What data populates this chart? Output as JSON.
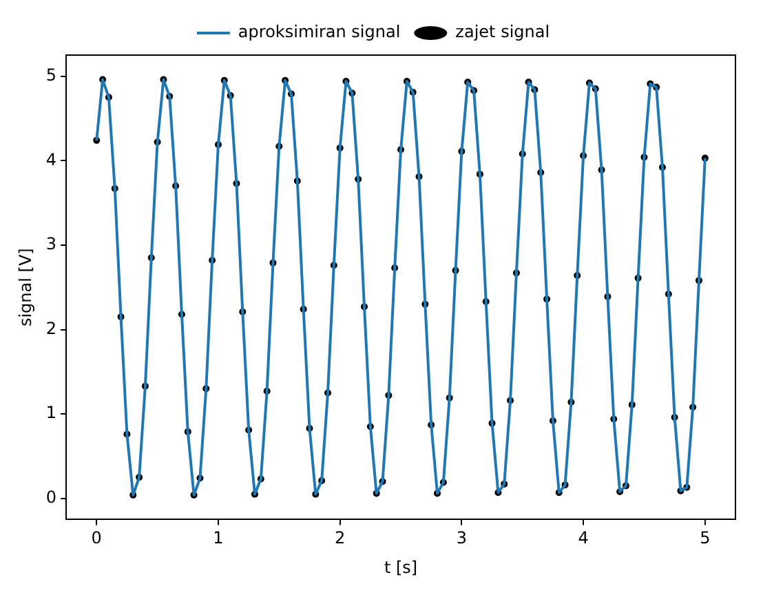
{
  "chart_data": {
    "type": "line",
    "xlabel": "t [s]",
    "ylabel": "signal [V]",
    "xlim": [
      -0.25,
      5.25
    ],
    "xticks": [
      0,
      1,
      2,
      3,
      4,
      5
    ],
    "ylim": [
      -0.25,
      5.25
    ],
    "yticks": [
      0,
      1,
      2,
      3,
      4,
      5
    ],
    "grid": false,
    "legend": "top",
    "x": [
      0,
      0.05,
      0.1,
      0.15,
      0.2,
      0.25,
      0.3,
      0.35,
      0.4,
      0.45,
      0.5,
      0.55,
      0.6,
      0.65,
      0.7,
      0.75,
      0.8,
      0.85,
      0.9,
      0.95,
      1,
      1.05,
      1.1,
      1.15,
      1.2,
      1.25,
      1.3,
      1.35,
      1.4,
      1.45,
      1.5,
      1.55,
      1.6,
      1.65,
      1.7,
      1.75,
      1.8,
      1.85,
      1.9,
      1.95,
      2,
      2.05,
      2.1,
      2.15,
      2.2,
      2.25,
      2.3,
      2.35,
      2.4,
      2.45,
      2.5,
      2.55,
      2.6,
      2.65,
      2.7,
      2.75,
      2.8,
      2.85,
      2.9,
      2.95,
      3,
      3.05,
      3.1,
      3.15,
      3.2,
      3.25,
      3.3,
      3.35,
      3.4,
      3.45,
      3.5,
      3.55,
      3.6,
      3.65,
      3.7,
      3.75,
      3.8,
      3.85,
      3.9,
      3.95,
      4,
      4.05,
      4.1,
      4.15,
      4.2,
      4.25,
      4.3,
      4.35,
      4.4,
      4.45,
      4.5,
      4.55,
      4.6,
      4.65,
      4.7,
      4.75,
      4.8,
      4.85,
      4.9,
      4.95,
      5
    ],
    "series": [
      {
        "name": "aproksimiran signal",
        "type": "line",
        "color": "#1f77b4",
        "marker": "none",
        "line_style": "solid",
        "values": [
          4.24,
          4.96,
          4.75,
          3.67,
          2.15,
          0.76,
          0.04,
          0.25,
          1.33,
          2.85,
          4.22,
          4.96,
          4.76,
          3.7,
          2.18,
          0.79,
          0.04,
          0.24,
          1.3,
          2.82,
          4.19,
          4.95,
          4.77,
          3.73,
          2.21,
          0.81,
          0.05,
          0.23,
          1.27,
          2.79,
          4.17,
          4.95,
          4.79,
          3.76,
          2.24,
          0.83,
          0.05,
          0.21,
          1.25,
          2.76,
          4.15,
          4.94,
          4.8,
          3.78,
          2.27,
          0.85,
          0.06,
          0.2,
          1.22,
          2.73,
          4.13,
          4.94,
          4.81,
          3.81,
          2.3,
          0.87,
          0.06,
          0.19,
          1.19,
          2.7,
          4.11,
          4.93,
          4.83,
          3.84,
          2.33,
          0.89,
          0.07,
          0.17,
          1.16,
          2.67,
          4.08,
          4.93,
          4.84,
          3.86,
          2.36,
          0.92,
          0.07,
          0.16,
          1.14,
          2.64,
          4.06,
          4.92,
          4.85,
          3.89,
          2.39,
          0.94,
          0.08,
          0.15,
          1.11,
          2.61,
          4.04,
          4.91,
          4.87,
          3.92,
          2.42,
          0.96,
          0.09,
          0.13,
          1.08,
          2.58,
          4.03
        ]
      },
      {
        "name": "zajet signal",
        "type": "scatter",
        "color": "#000000",
        "marker": "circle",
        "values": [
          4.24,
          4.96,
          4.75,
          3.67,
          2.15,
          0.76,
          0.04,
          0.25,
          1.33,
          2.85,
          4.22,
          4.96,
          4.76,
          3.7,
          2.18,
          0.79,
          0.04,
          0.24,
          1.3,
          2.82,
          4.19,
          4.95,
          4.77,
          3.73,
          2.21,
          0.81,
          0.05,
          0.23,
          1.27,
          2.79,
          4.17,
          4.95,
          4.79,
          3.76,
          2.24,
          0.83,
          0.05,
          0.21,
          1.25,
          2.76,
          4.15,
          4.94,
          4.8,
          3.78,
          2.27,
          0.85,
          0.06,
          0.2,
          1.22,
          2.73,
          4.13,
          4.94,
          4.81,
          3.81,
          2.3,
          0.87,
          0.06,
          0.19,
          1.19,
          2.7,
          4.11,
          4.93,
          4.83,
          3.84,
          2.33,
          0.89,
          0.07,
          0.17,
          1.16,
          2.67,
          4.08,
          4.93,
          4.84,
          3.86,
          2.36,
          0.92,
          0.07,
          0.16,
          1.14,
          2.64,
          4.06,
          4.92,
          4.85,
          3.89,
          2.39,
          0.94,
          0.08,
          0.15,
          1.11,
          2.61,
          4.04,
          4.91,
          4.87,
          3.92,
          2.42,
          0.96,
          0.09,
          0.13,
          1.08,
          2.58,
          4.03
        ]
      }
    ]
  }
}
